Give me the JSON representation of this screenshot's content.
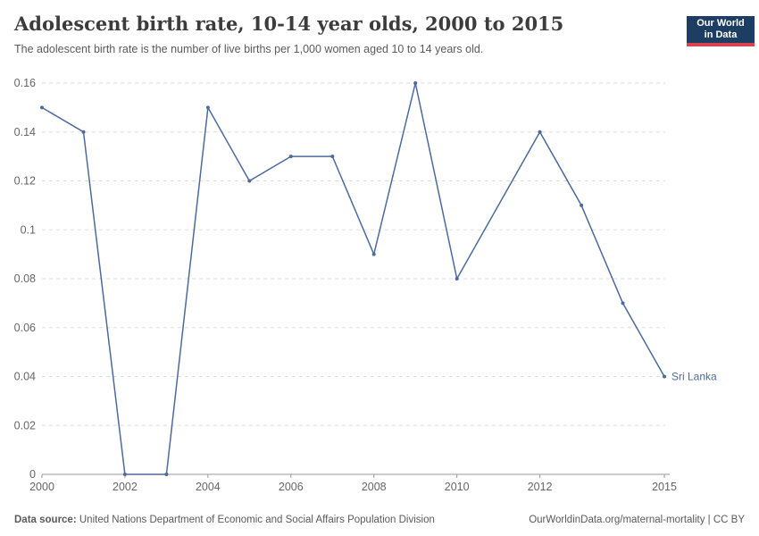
{
  "header": {
    "title": "Adolescent birth rate, 10-14 year olds, 2000 to 2015",
    "subtitle": "The adolescent birth rate is the number of live births per 1,000 women aged 10 to 14 years old."
  },
  "logo": {
    "line1": "Our World",
    "line2": "in Data",
    "bg_color": "#1d3d63",
    "accent_color": "#d8434e"
  },
  "chart_data": {
    "type": "line",
    "title": "Adolescent birth rate, 10-14 year olds, 2000 to 2015",
    "xlabel": "",
    "ylabel": "",
    "xlim": [
      2000,
      2015
    ],
    "ylim": [
      0,
      0.16
    ],
    "grid": "horizontal-dashed",
    "x_ticks": [
      2000,
      2002,
      2004,
      2006,
      2008,
      2010,
      2012,
      2015
    ],
    "y_tick_labels": [
      "0",
      "0.02",
      "0.04",
      "0.06",
      "0.08",
      "0.1",
      "0.12",
      "0.14",
      "0.16"
    ],
    "series": [
      {
        "name": "Sri Lanka",
        "color": "#4c6a9c",
        "points": [
          [
            2000,
            0.15
          ],
          [
            2001,
            0.14
          ],
          [
            2002,
            0
          ],
          [
            2003,
            0
          ],
          [
            2004,
            0.15
          ],
          [
            2005,
            0.12
          ],
          [
            2006,
            0.13
          ],
          [
            2007,
            0.13
          ],
          [
            2008,
            0.09
          ],
          [
            2009,
            0.16
          ],
          [
            2010,
            0.08
          ],
          [
            2012,
            0.14
          ],
          [
            2013,
            0.11
          ],
          [
            2014,
            0.07
          ],
          [
            2015,
            0.04
          ]
        ]
      }
    ],
    "end_label": "Sri Lanka"
  },
  "footer": {
    "source_label": "Data source:",
    "source_text": " United Nations Department of Economic and Social Affairs Population Division",
    "credit": "OurWorldinData.org/maternal-mortality | CC BY"
  }
}
